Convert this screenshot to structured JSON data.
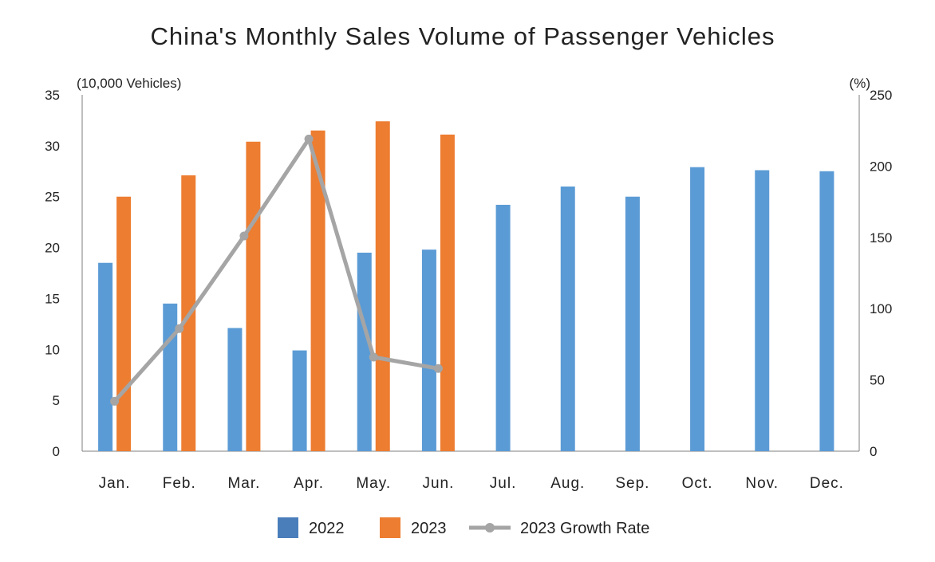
{
  "chart_data": {
    "type": "bar",
    "title": "China's Monthly Sales Volume of Passenger Vehicles",
    "categories": [
      "Jan.",
      "Feb.",
      "Mar.",
      "Apr.",
      "May.",
      "Jun.",
      "Jul.",
      "Aug.",
      "Sep.",
      "Oct.",
      "Nov.",
      "Dec."
    ],
    "y_left": {
      "label": "(10,000 Vehicles)",
      "lim": [
        0,
        35
      ],
      "ticks": [
        0,
        5,
        10,
        15,
        20,
        25,
        30,
        35
      ]
    },
    "y_right": {
      "label": "(%)",
      "lim": [
        0,
        250
      ],
      "ticks": [
        0,
        50,
        100,
        150,
        200,
        250
      ]
    },
    "grid": false,
    "legend_position": "bottom",
    "series": [
      {
        "name": "2022",
        "type": "bar",
        "axis": "left",
        "color": "#5b9bd5",
        "legend_color": "#4a7ebb",
        "values": [
          18.5,
          14.5,
          12.1,
          9.9,
          19.5,
          19.8,
          24.2,
          26.0,
          25.0,
          27.9,
          27.6,
          27.5
        ]
      },
      {
        "name": "2023",
        "type": "bar",
        "axis": "left",
        "color": "#ed7d31",
        "legend_color": "#ed7d31",
        "values": [
          25.0,
          27.1,
          30.4,
          31.5,
          32.4,
          31.1,
          null,
          null,
          null,
          null,
          null,
          null
        ]
      },
      {
        "name": "2023 Growth Rate",
        "type": "line",
        "axis": "right",
        "color": "#a5a5a5",
        "legend_color": "#a5a5a5",
        "values": [
          35,
          86,
          151,
          219,
          66,
          58,
          null,
          null,
          null,
          null,
          null,
          null
        ]
      }
    ]
  }
}
